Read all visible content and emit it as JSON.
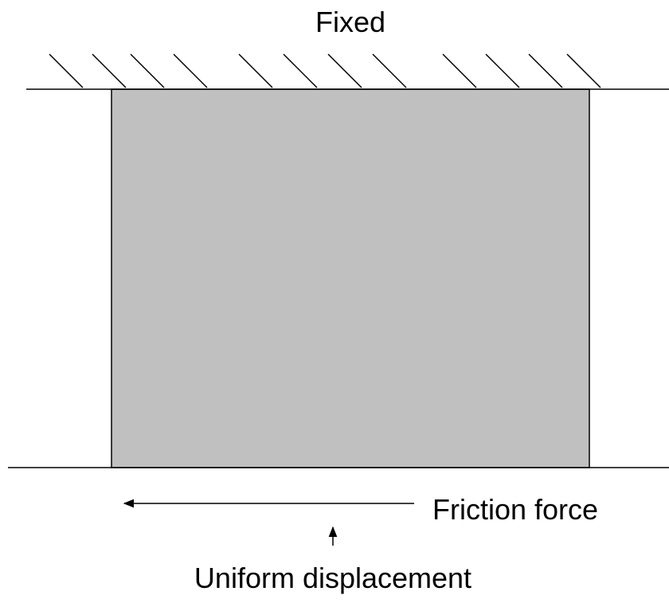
{
  "labels": {
    "top": "Fixed",
    "friction": "Friction force",
    "displacement": "Uniform displacement"
  }
}
